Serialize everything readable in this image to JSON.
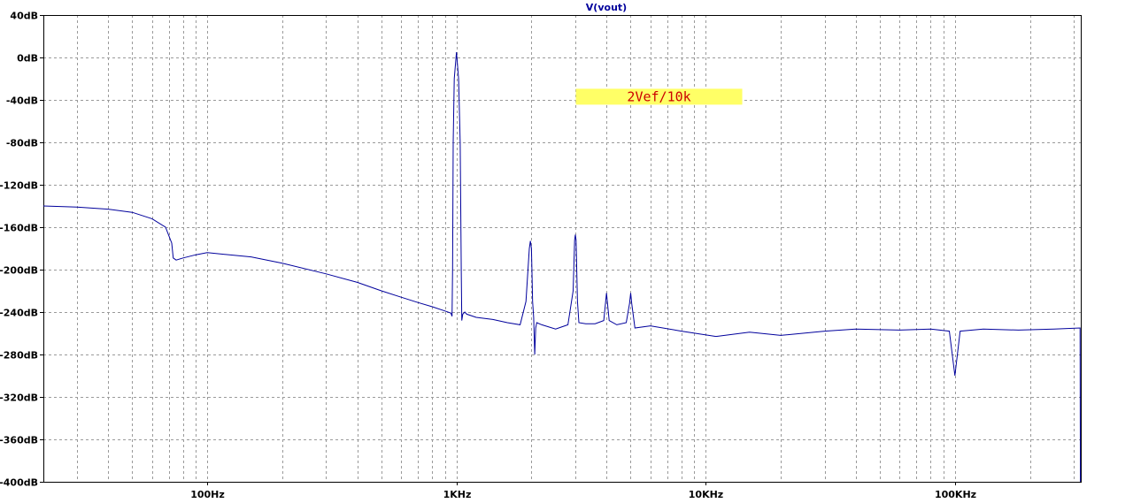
{
  "chart_data": {
    "type": "line",
    "title": "V(vout)",
    "xlabel": "",
    "ylabel": "",
    "x_scale": "log",
    "xlim": [
      22,
      320000
    ],
    "ylim": [
      -400,
      40
    ],
    "x_ticks": [
      {
        "value": 100,
        "label": "100Hz"
      },
      {
        "value": 1000,
        "label": "1KHz"
      },
      {
        "value": 10000,
        "label": "10KHz"
      },
      {
        "value": 100000,
        "label": "100KHz"
      }
    ],
    "y_ticks": [
      {
        "value": 40,
        "label": "40dB"
      },
      {
        "value": 0,
        "label": "0dB"
      },
      {
        "value": -40,
        "label": "-40dB"
      },
      {
        "value": -80,
        "label": "-80dB"
      },
      {
        "value": -120,
        "label": "-120dB"
      },
      {
        "value": -160,
        "label": "-160dB"
      },
      {
        "value": -200,
        "label": "-200dB"
      },
      {
        "value": -240,
        "label": "-240dB"
      },
      {
        "value": -280,
        "label": "-280dB"
      },
      {
        "value": -320,
        "label": "-320dB"
      },
      {
        "value": -360,
        "label": "-360dB"
      },
      {
        "value": -400,
        "label": "-400dB"
      }
    ],
    "grid": true,
    "annotation": {
      "text": "2Vef/10k",
      "x": 6500,
      "y": -37
    },
    "series": [
      {
        "name": "V(vout)",
        "x": [
          22,
          30,
          40,
          50,
          60,
          68,
          72,
          73,
          75,
          80,
          90,
          100,
          150,
          200,
          300,
          400,
          500,
          600,
          700,
          800,
          900,
          950,
          960,
          965,
          970,
          980,
          1000,
          1020,
          1035,
          1045,
          1050,
          1060,
          1080,
          1100,
          1200,
          1400,
          1600,
          1800,
          1900,
          1960,
          1980,
          2000,
          2020,
          2040,
          2060,
          2080,
          2100,
          2200,
          2500,
          2800,
          2940,
          2980,
          3000,
          3020,
          3060,
          3100,
          3300,
          3600,
          3900,
          4000,
          4100,
          4400,
          4800,
          4950,
          5000,
          5050,
          5200,
          6000,
          8000,
          11000,
          15000,
          20000,
          30000,
          40000,
          60000,
          80000,
          95000,
          100000,
          105000,
          130000,
          180000,
          250000,
          318000,
          318500,
          319000
        ],
        "values": [
          -140,
          -141,
          -143,
          -146,
          -152,
          -160,
          -175,
          -189,
          -191,
          -189,
          -186,
          -184,
          -188,
          -194,
          -204,
          -212,
          -220,
          -226,
          -231,
          -235,
          -239,
          -241,
          -244,
          -200,
          -80,
          -20,
          5,
          -20,
          -80,
          -200,
          -248,
          -242,
          -240,
          -242,
          -245,
          -247,
          -250,
          -252,
          -230,
          -180,
          -173,
          -180,
          -230,
          -245,
          -280,
          -255,
          -250,
          -252,
          -256,
          -252,
          -220,
          -172,
          -167,
          -172,
          -230,
          -250,
          -251,
          -251,
          -248,
          -222,
          -248,
          -252,
          -250,
          -232,
          -222,
          -232,
          -255,
          -253,
          -258,
          -263,
          -259,
          -262,
          -258,
          -256,
          -257,
          -256,
          -258,
          -300,
          -258,
          -256,
          -257,
          -256,
          -255,
          -340,
          -400
        ]
      }
    ]
  },
  "colors": {
    "trace": "#00009c",
    "title": "#00009c",
    "annotation_bg": "#ffff66",
    "annotation_text": "#cc0000",
    "grid": "#9a9a9a",
    "axis": "#000000",
    "background": "#ffffff"
  }
}
